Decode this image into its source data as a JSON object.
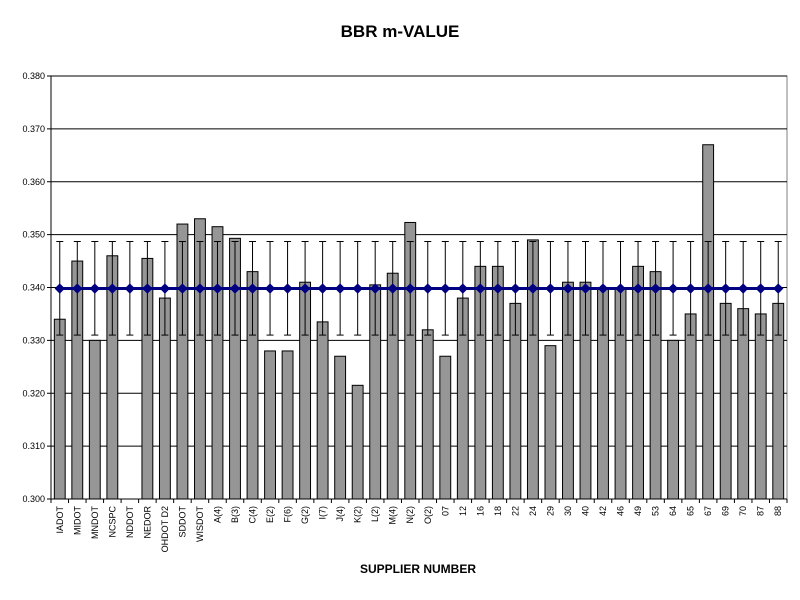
{
  "chart_data": {
    "type": "bar",
    "title": "BBR m-VALUE",
    "xlabel": "SUPPLIER NUMBER",
    "ylabel": "",
    "ylim": [
      0.3,
      0.38
    ],
    "yticks": [
      "0.300",
      "0.310",
      "0.320",
      "0.330",
      "0.340",
      "0.350",
      "0.360",
      "0.370",
      "0.380"
    ],
    "grid": true,
    "categories": [
      "IADOT",
      "MIDOT",
      "MNDOT",
      "NCSPC",
      "NDDOT",
      "NEDOR",
      "OHDOT D2",
      "SDDOT",
      "WISDOT",
      "A(4)",
      "B(3)",
      "C(4)",
      "E(2)",
      "F(6)",
      "G(2)",
      "I(7)",
      "J(4)",
      "K(2)",
      "L(2)",
      "M(4)",
      "N(2)",
      "O(2)",
      "07",
      "12",
      "16",
      "18",
      "22",
      "24",
      "29",
      "30",
      "40",
      "42",
      "46",
      "49",
      "53",
      "64",
      "65",
      "67",
      "69",
      "70",
      "87",
      "88"
    ],
    "series": [
      {
        "type": "bar",
        "values": [
          0.334,
          0.345,
          0.33,
          0.346,
          null,
          0.3455,
          0.338,
          0.352,
          0.353,
          0.3515,
          0.3493,
          0.343,
          0.328,
          0.328,
          0.341,
          0.3335,
          0.327,
          0.3215,
          0.3405,
          0.3427,
          0.3523,
          0.332,
          0.327,
          0.338,
          0.344,
          0.344,
          0.337,
          0.349,
          0.329,
          0.341,
          0.341,
          0.34,
          0.34,
          0.344,
          0.343,
          0.33,
          0.335,
          0.367,
          0.337,
          0.336,
          0.335,
          0.337
        ],
        "error_low": 0.331,
        "error_high": 0.3487
      },
      {
        "type": "line",
        "value": 0.3398
      }
    ],
    "colors": {
      "bar": "#969696",
      "line": "#000080",
      "marker": "#000080",
      "grid": "#000000"
    }
  }
}
